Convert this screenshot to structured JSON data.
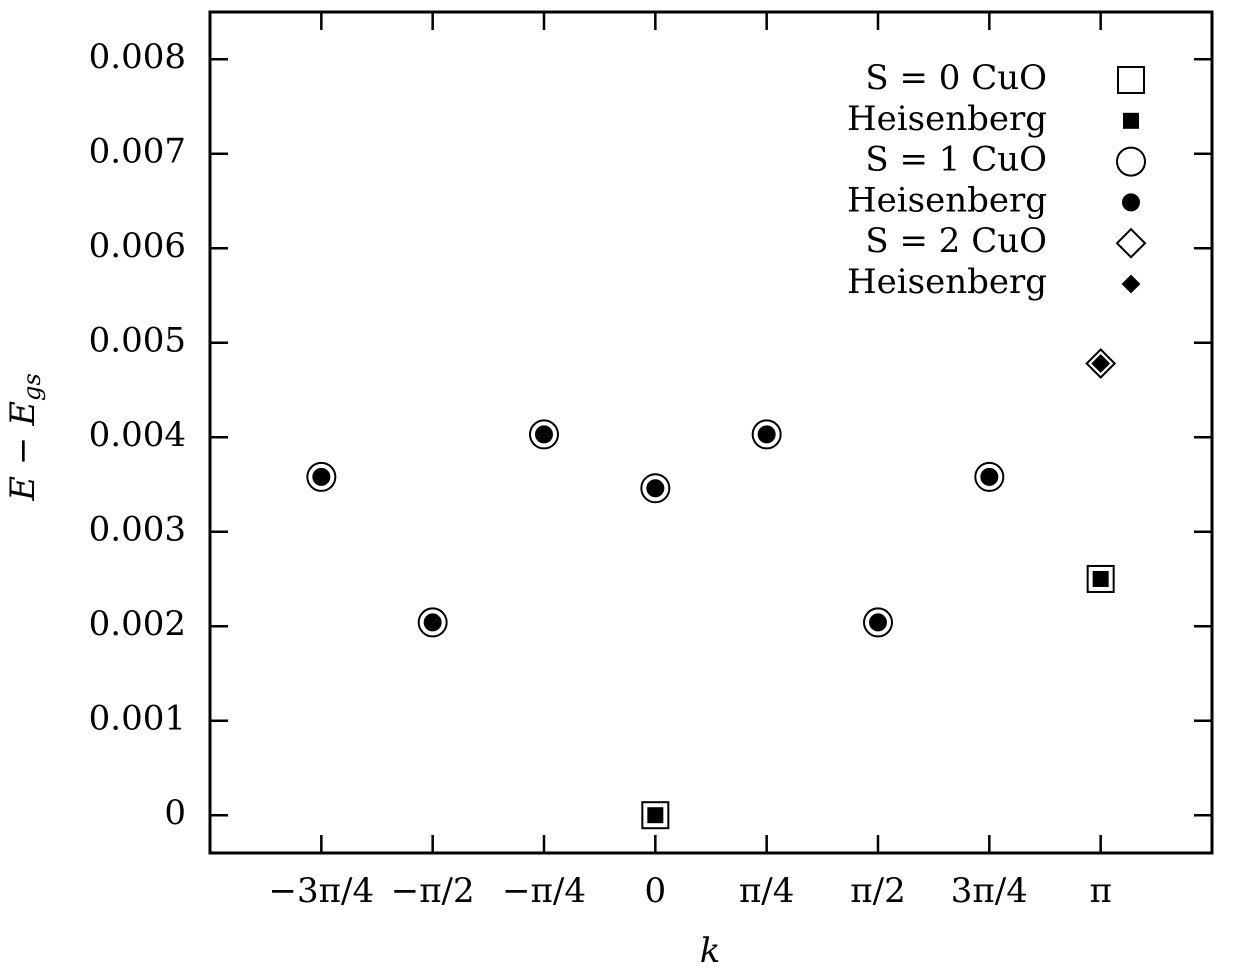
{
  "chart_data": {
    "type": "scatter",
    "x_label": "k",
    "y_label": {
      "main": "E − E",
      "sub": "gs"
    },
    "xlim": [
      -3.14159,
      3.92699
    ],
    "xticks": [
      {
        "value": -2.35619,
        "label": "−3π/4"
      },
      {
        "value": -1.5708,
        "label": "−π/2"
      },
      {
        "value": -0.785398,
        "label": "−π/4"
      },
      0,
      {
        "value": 0.785398,
        "label": "π/4"
      },
      {
        "value": 1.5708,
        "label": "π/2"
      },
      {
        "value": 2.35619,
        "label": "3π/4"
      },
      {
        "value": 3.14159,
        "label": "π"
      }
    ],
    "ylim": [
      -0.0004,
      0.0085
    ],
    "yticks": [
      0,
      0.001,
      0.002,
      0.003,
      0.004,
      0.005,
      0.006,
      0.007,
      0.008
    ],
    "legend": "upper right",
    "series": [
      {
        "name": "S = 0 CuO",
        "color": "#000000",
        "marker": "square",
        "filled": false,
        "x": [
          0,
          3.14159
        ],
        "values": [
          0,
          0.0025
        ]
      },
      {
        "name": "Heisenberg",
        "color": "#000000",
        "marker": "square",
        "filled": true,
        "x": [
          0,
          3.14159
        ],
        "values": [
          0,
          0.0025
        ]
      },
      {
        "name": "S = 1 CuO",
        "color": "#000000",
        "marker": "circle",
        "filled": false,
        "x": [
          -2.35619,
          -1.5708,
          -0.785398,
          0,
          0.785398,
          1.5708,
          2.35619
        ],
        "values": [
          0.00358,
          0.00204,
          0.00403,
          0.00346,
          0.00403,
          0.00204,
          0.00358
        ]
      },
      {
        "name": "Heisenberg",
        "color": "#000000",
        "marker": "circle",
        "filled": true,
        "x": [
          -2.35619,
          -1.5708,
          -0.785398,
          0,
          0.785398,
          1.5708,
          2.35619
        ],
        "values": [
          0.00358,
          0.00204,
          0.00403,
          0.00346,
          0.00403,
          0.00204,
          0.00358
        ]
      },
      {
        "name": "S = 2 CuO",
        "color": "#000000",
        "marker": "diamond",
        "filled": false,
        "x": [
          3.14159
        ],
        "values": [
          0.00478
        ]
      },
      {
        "name": "Heisenberg",
        "color": "#000000",
        "marker": "diamond",
        "filled": true,
        "x": [
          3.14159
        ],
        "values": [
          0.00478
        ]
      }
    ]
  }
}
